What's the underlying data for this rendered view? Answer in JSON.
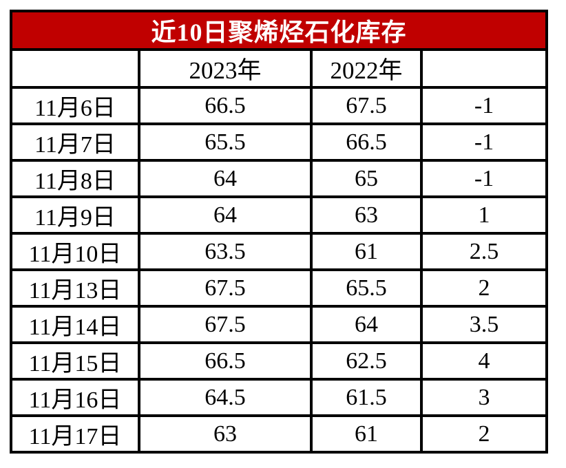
{
  "colors": {
    "title_background": "#c00000",
    "title_text": "#ffffff",
    "table_border": "#000000",
    "cell_background": "#ffffff",
    "cell_text": "#000000"
  },
  "chart_data": {
    "type": "table",
    "title": "近10日聚烯烃石化库存",
    "columns": [
      "",
      "2023年",
      "2022年",
      ""
    ],
    "rows": [
      [
        "11月6日",
        66.5,
        67.5,
        -1
      ],
      [
        "11月7日",
        65.5,
        66.5,
        -1
      ],
      [
        "11月8日",
        64,
        65,
        -1
      ],
      [
        "11月9日",
        64,
        63,
        1
      ],
      [
        "11月10日",
        63.5,
        61,
        2.5
      ],
      [
        "11月13日",
        67.5,
        65.5,
        2
      ],
      [
        "11月14日",
        67.5,
        64,
        3.5
      ],
      [
        "11月15日",
        66.5,
        62.5,
        4
      ],
      [
        "11月16日",
        64.5,
        61.5,
        3
      ],
      [
        "11月17日",
        63,
        61,
        2
      ]
    ],
    "layout": {
      "title_position": "top-banner",
      "value_alignment": "center",
      "grid": "all-borders"
    }
  }
}
